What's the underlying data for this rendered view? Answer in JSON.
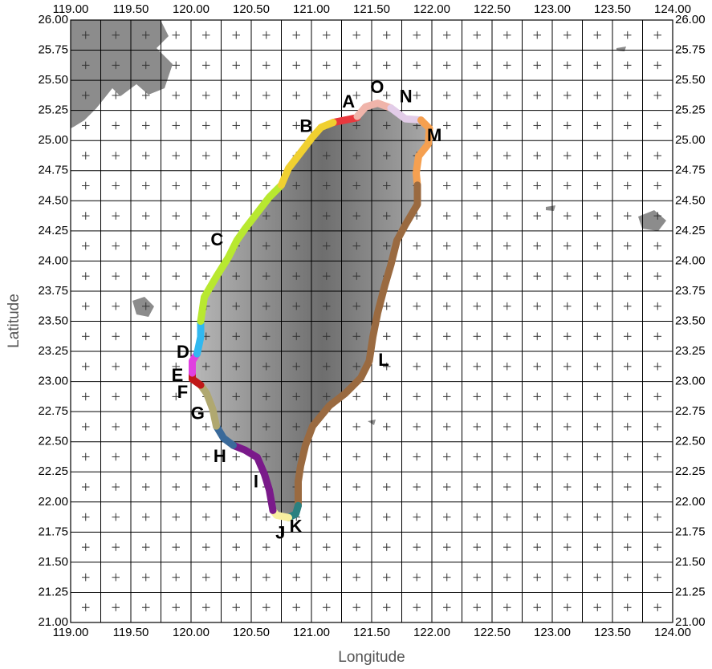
{
  "chart_data": {
    "type": "line",
    "x_label": "Longitude",
    "y_label": "Latitude",
    "xlim": [
      119,
      124
    ],
    "ylim": [
      21,
      26
    ],
    "xticks": [
      {
        "value": 119,
        "label": "119.00"
      },
      {
        "value": 119.5,
        "label": "119.50"
      },
      {
        "value": 120,
        "label": "120.00"
      },
      {
        "value": 120.5,
        "label": "120.50"
      },
      {
        "value": 121,
        "label": "121.00"
      },
      {
        "value": 121.5,
        "label": "121.50"
      },
      {
        "value": 122,
        "label": "122.00"
      },
      {
        "value": 122.5,
        "label": "122.50"
      },
      {
        "value": 123,
        "label": "123.00"
      },
      {
        "value": 123.5,
        "label": "123.50"
      },
      {
        "value": 124,
        "label": "124.00"
      }
    ],
    "yticks": [
      {
        "value": 21,
        "label": "21.00"
      },
      {
        "value": 21.25,
        "label": "21.25"
      },
      {
        "value": 21.5,
        "label": "21.50"
      },
      {
        "value": 21.75,
        "label": "21.75"
      },
      {
        "value": 22,
        "label": "22.00"
      },
      {
        "value": 22.25,
        "label": "22.25"
      },
      {
        "value": 22.5,
        "label": "22.50"
      },
      {
        "value": 22.75,
        "label": "22.75"
      },
      {
        "value": 23,
        "label": "23.00"
      },
      {
        "value": 23.25,
        "label": "23.25"
      },
      {
        "value": 23.5,
        "label": "23.50"
      },
      {
        "value": 23.75,
        "label": "23.75"
      },
      {
        "value": 24,
        "label": "24.00"
      },
      {
        "value": 24.25,
        "label": "24.25"
      },
      {
        "value": 24.5,
        "label": "24.50"
      },
      {
        "value": 24.75,
        "label": "24.75"
      },
      {
        "value": 25,
        "label": "25.00"
      },
      {
        "value": 25.25,
        "label": "25.25"
      },
      {
        "value": 25.5,
        "label": "25.50"
      },
      {
        "value": 25.75,
        "label": "25.75"
      },
      {
        "value": 26,
        "label": "26.00"
      }
    ],
    "grid": true,
    "segments": [
      {
        "name": "A",
        "color": "#e8383d",
        "lon": [
          121.18,
          121.38
        ],
        "lat": [
          25.15,
          25.19
        ]
      },
      {
        "name": "O",
        "color": "#f0b4aa",
        "lon": [
          121.38,
          121.45,
          121.55,
          121.66
        ],
        "lat": [
          25.2,
          25.28,
          25.31,
          25.27
        ]
      },
      {
        "name": "N",
        "color": "#e2cce8",
        "lon": [
          121.66,
          121.78,
          121.91
        ],
        "lat": [
          25.27,
          25.18,
          25.17
        ]
      },
      {
        "name": "M",
        "color": "#f5a050",
        "lon": [
          121.91,
          121.98,
          121.97,
          121.89,
          121.87,
          121.88
        ],
        "lat": [
          25.17,
          25.1,
          24.97,
          24.87,
          24.73,
          24.63
        ]
      },
      {
        "name": "L",
        "color": "#9a6a40",
        "lon": [
          121.88,
          121.88,
          121.78,
          121.71,
          121.66,
          121.61,
          121.55,
          121.51,
          121.48,
          121.41,
          121.28,
          121.15,
          121.01,
          120.95,
          120.91,
          120.89,
          120.89
        ],
        "lat": [
          24.63,
          24.47,
          24.3,
          24.17,
          23.97,
          23.8,
          23.57,
          23.37,
          23.17,
          23.03,
          22.9,
          22.8,
          22.63,
          22.47,
          22.3,
          22.17,
          21.97
        ]
      },
      {
        "name": "K",
        "color": "#2a8080",
        "lon": [
          120.89,
          120.87,
          120.81
        ],
        "lat": [
          21.97,
          21.9,
          21.87
        ]
      },
      {
        "name": "J",
        "color": "#f8f0a0",
        "lon": [
          120.81,
          120.71,
          120.68
        ],
        "lat": [
          21.87,
          21.89,
          21.93
        ]
      },
      {
        "name": "I",
        "color": "#7a1a8a",
        "lon": [
          120.68,
          120.65,
          120.61,
          120.55,
          120.45,
          120.35
        ],
        "lat": [
          21.93,
          22.1,
          22.23,
          22.37,
          22.43,
          22.47
        ]
      },
      {
        "name": "H",
        "color": "#3a6a9a",
        "lon": [
          120.35,
          120.27,
          120.21
        ],
        "lat": [
          22.47,
          22.53,
          22.63
        ]
      },
      {
        "name": "G",
        "color": "#b0a870",
        "lon": [
          120.21,
          120.18,
          120.13,
          120.08
        ],
        "lat": [
          22.63,
          22.77,
          22.9,
          22.97
        ]
      },
      {
        "name": "F",
        "color": "#c01818",
        "lon": [
          120.08,
          120.01,
          120.01
        ],
        "lat": [
          22.97,
          23.02,
          23.07
        ]
      },
      {
        "name": "E",
        "color": "#e040e0",
        "lon": [
          120.01,
          120.01,
          120.05
        ],
        "lat": [
          23.07,
          23.17,
          23.23
        ]
      },
      {
        "name": "D",
        "color": "#30b8f0",
        "lon": [
          120.05,
          120.08,
          120.08
        ],
        "lat": [
          23.23,
          23.37,
          23.5
        ]
      },
      {
        "name": "C",
        "color": "#b8e830",
        "lon": [
          120.08,
          120.11,
          120.21,
          120.31,
          120.38,
          120.45,
          120.55,
          120.65,
          120.75
        ],
        "lat": [
          23.5,
          23.7,
          23.87,
          24.03,
          24.17,
          24.27,
          24.4,
          24.53,
          24.63
        ]
      },
      {
        "name": "B",
        "color": "#f0d030",
        "lon": [
          120.75,
          120.81,
          120.91,
          121.01,
          121.08,
          121.18
        ],
        "lat": [
          24.63,
          24.77,
          24.9,
          25.03,
          25.11,
          25.15
        ]
      }
    ]
  }
}
